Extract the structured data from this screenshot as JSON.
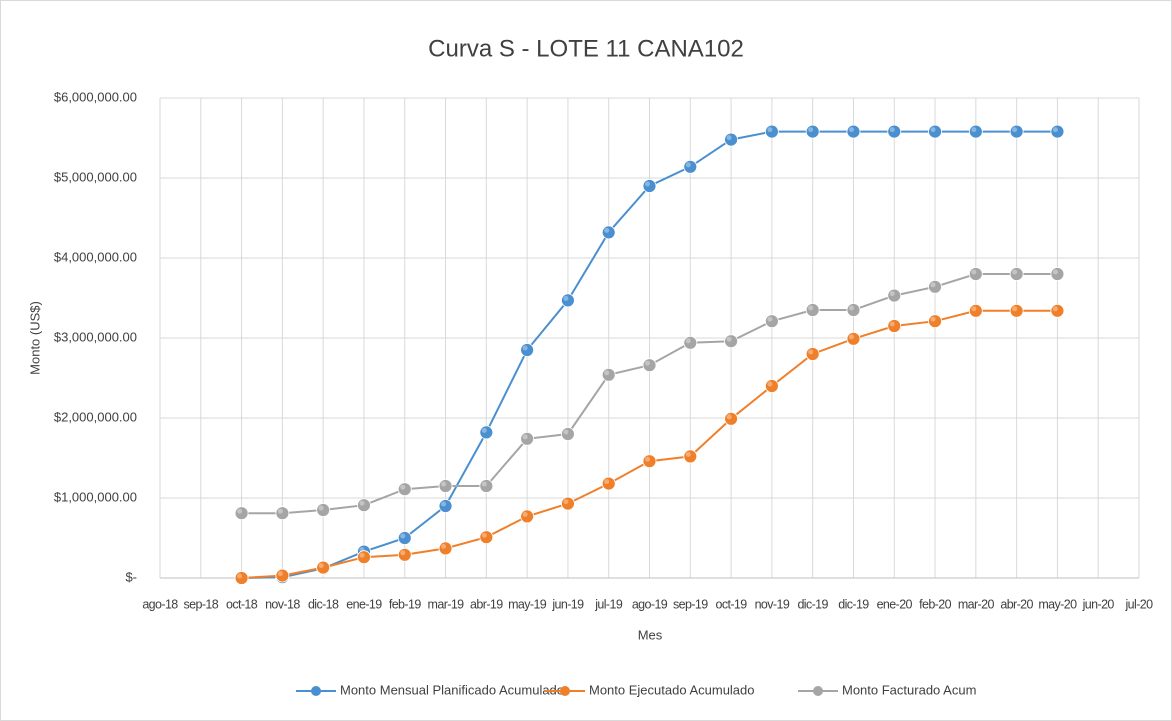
{
  "chart_data": {
    "type": "line",
    "title": "Curva S - LOTE 11 CANA102",
    "x_label": "Mes",
    "y_label": "Monto (US$)",
    "categories": [
      "ago-18",
      "sep-18",
      "oct-18",
      "nov-18",
      "dic-18",
      "ene-19",
      "feb-19",
      "mar-19",
      "abr-19",
      "may-19",
      "jun-19",
      "jul-19",
      "ago-19",
      "sep-19",
      "oct-19",
      "nov-19",
      "dic-19",
      "dic-19",
      "ene-20",
      "feb-20",
      "mar-20",
      "abr-20",
      "may-20",
      "jun-20",
      "jul-20"
    ],
    "series": [
      {
        "name": "Monto Mensual Planificado Acumulado",
        "color": "#4a8fd0",
        "values": [
          null,
          null,
          0,
          10000,
          120000,
          330000,
          500000,
          900000,
          1820000,
          2850000,
          3470000,
          4320000,
          4900000,
          5140000,
          5480000,
          5580000,
          5580000,
          5580000,
          5580000,
          5580000,
          5580000,
          5580000,
          5580000,
          null,
          null
        ]
      },
      {
        "name": "Monto Ejecutado Acumulado",
        "color": "#f07f2a",
        "values": [
          null,
          null,
          0,
          30000,
          130000,
          260000,
          290000,
          370000,
          510000,
          770000,
          930000,
          1180000,
          1460000,
          1520000,
          1990000,
          2400000,
          2800000,
          2990000,
          3150000,
          3210000,
          3340000,
          3340000,
          3340000,
          null,
          null
        ]
      },
      {
        "name": "Monto Facturado Acum",
        "color": "#a5a5a5",
        "values": [
          null,
          null,
          810000,
          810000,
          850000,
          910000,
          1110000,
          1150000,
          1150000,
          1740000,
          1800000,
          2540000,
          2660000,
          2940000,
          2960000,
          3210000,
          3350000,
          3350000,
          3530000,
          3640000,
          3800000,
          3800000,
          3800000,
          null,
          null
        ]
      }
    ],
    "ylim": [
      0,
      6000000
    ],
    "yticks": [
      {
        "value": 0,
        "label": "$-"
      },
      {
        "value": 1000000,
        "label": "$1,000,000.00"
      },
      {
        "value": 2000000,
        "label": "$2,000,000.00"
      },
      {
        "value": 3000000,
        "label": "$3,000,000.00"
      },
      {
        "value": 4000000,
        "label": "$4,000,000.00"
      },
      {
        "value": 5000000,
        "label": "$5,000,000.00"
      },
      {
        "value": 6000000,
        "label": "$6,000,000.00"
      }
    ],
    "grid": true,
    "legend": "bottom"
  }
}
